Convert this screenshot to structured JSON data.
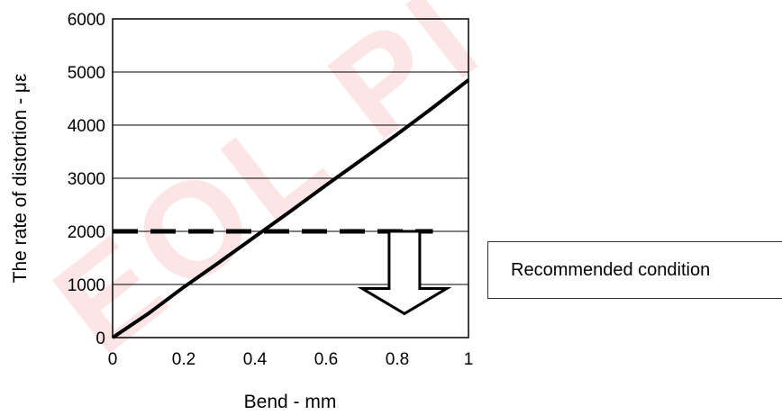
{
  "chart_data": {
    "type": "line",
    "xlabel": "Bend - mm",
    "ylabel": "The rate of distortion - με",
    "xlim": [
      0,
      1
    ],
    "ylim": [
      0,
      6000
    ],
    "xticks": [
      "0",
      "0.2",
      "0.4",
      "0.6",
      "0.8",
      "1"
    ],
    "yticks": [
      "0",
      "1000",
      "2000",
      "3000",
      "4000",
      "5000",
      "6000"
    ],
    "grid": "horizontal",
    "series": [
      {
        "style": "solid",
        "x": [
          0,
          0.1,
          0.2,
          0.3,
          0.4,
          0.5,
          0.6,
          0.7,
          0.8,
          0.9,
          1.0
        ],
        "y": [
          0,
          450,
          950,
          1420,
          1900,
          2380,
          2870,
          3350,
          3830,
          4330,
          4850
        ]
      },
      {
        "style": "dashed",
        "x": [
          0,
          0.9
        ],
        "y": [
          2000,
          2000
        ]
      }
    ],
    "annotation": {
      "text": "Recommended condition",
      "arrow": "down",
      "x": 0.82,
      "y_from": 2000,
      "y_to": 450
    },
    "watermark": "EOL PI"
  }
}
